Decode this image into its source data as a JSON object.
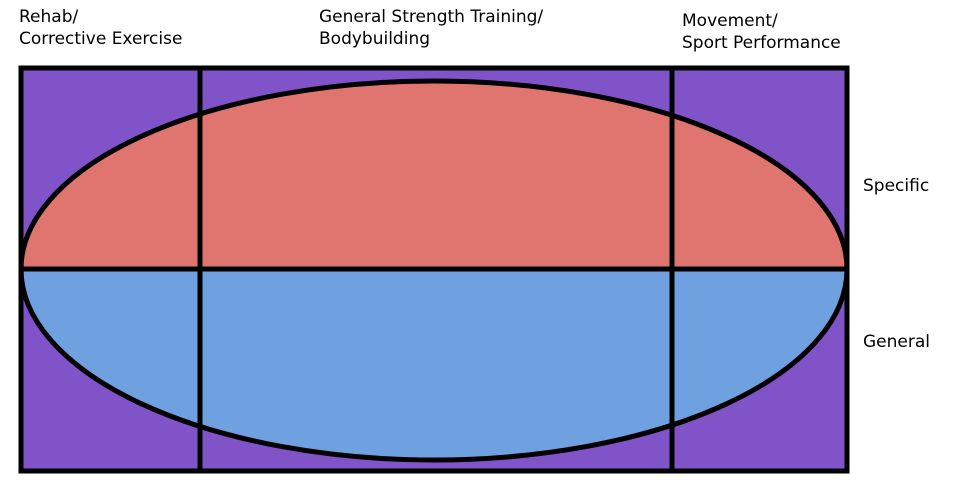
{
  "columns": [
    {
      "line1": "Rehab/",
      "line2": "Corrective Exercise"
    },
    {
      "line1": "General Strength Training/",
      "line2": "Bodybuilding"
    },
    {
      "line1": "Movement/",
      "line2": "Sport Performance"
    }
  ],
  "rows": {
    "top": "Specific",
    "bottom": "General"
  },
  "colors": {
    "background_box": "#8153c8",
    "upper_half": "#e07570",
    "lower_half": "#6fa0e0",
    "outline": "#000000"
  }
}
